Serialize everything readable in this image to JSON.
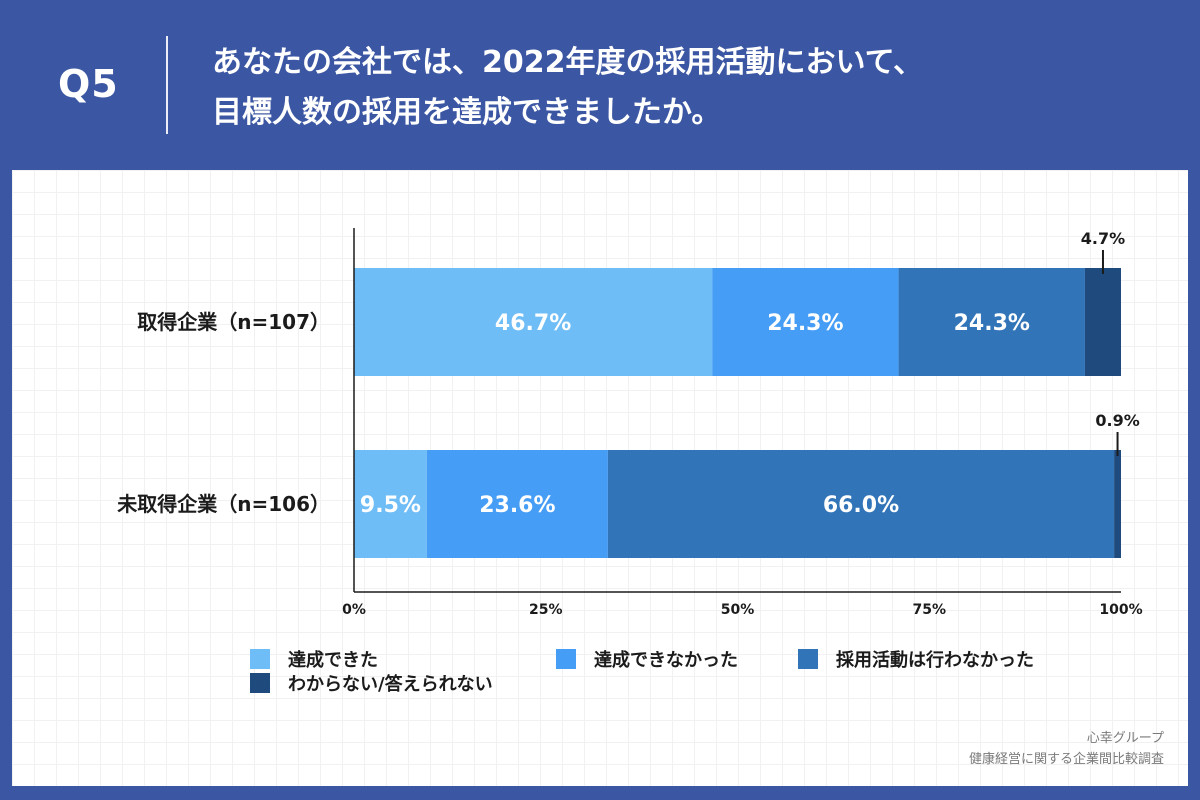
{
  "header": {
    "q_label": "Q5",
    "question_line1": "あなたの会社では、2022年度の採用活動において、",
    "question_line2": "目標人数の採用を達成できましたか。"
  },
  "colors": {
    "background": "#3b56a3",
    "series": [
      "#6fbdf7",
      "#469df5",
      "#3174b8",
      "#1f4a7d"
    ]
  },
  "chart_data": {
    "type": "bar",
    "orientation": "horizontal",
    "stacked": true,
    "categories": [
      "取得企業（n=107）",
      "未取得企業（n=106）"
    ],
    "series": [
      {
        "name": "達成できた",
        "values": [
          46.7,
          9.5
        ],
        "labels": [
          "46.7%",
          "9.5%"
        ]
      },
      {
        "name": "達成できなかった",
        "values": [
          24.3,
          23.6
        ],
        "labels": [
          "24.3%",
          "23.6%"
        ]
      },
      {
        "name": "採用活動は行わなかった",
        "values": [
          24.3,
          66.0
        ],
        "labels": [
          "24.3%",
          "66.0%"
        ]
      },
      {
        "name": "わからない/答えられない",
        "values": [
          4.7,
          0.9
        ],
        "labels": [
          "4.7%",
          "0.9%"
        ]
      }
    ],
    "xlim": [
      0,
      100
    ],
    "xticks": [
      "0%",
      "25%",
      "50%",
      "75%",
      "100%"
    ],
    "grid": false,
    "legend_position": "bottom"
  },
  "source": {
    "line1": "心幸グループ",
    "line2": "健康経営に関する企業間比較調査"
  }
}
